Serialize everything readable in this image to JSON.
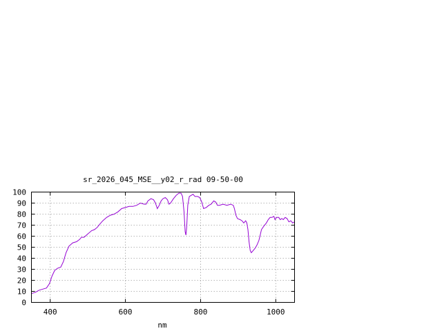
{
  "chart_data": {
    "type": "line",
    "title": "sr_2026_045_MSE__y02_r_rad 09-50-00",
    "xlabel": "nm",
    "ylabel": "",
    "xlim": [
      350,
      1050
    ],
    "ylim": [
      0,
      100
    ],
    "xticks": [
      400,
      600,
      800,
      1000
    ],
    "yticks": [
      0,
      10,
      20,
      30,
      40,
      50,
      60,
      70,
      80,
      90,
      100
    ],
    "grid": true,
    "legend": "none",
    "series": [
      {
        "color": "#9400d3",
        "points": [
          [
            350,
            8
          ],
          [
            360,
            9
          ],
          [
            370,
            11
          ],
          [
            380,
            12
          ],
          [
            390,
            13
          ],
          [
            398,
            17
          ],
          [
            405,
            24
          ],
          [
            412,
            29
          ],
          [
            420,
            31
          ],
          [
            428,
            32
          ],
          [
            435,
            37
          ],
          [
            442,
            45
          ],
          [
            450,
            51
          ],
          [
            460,
            54
          ],
          [
            470,
            55
          ],
          [
            478,
            57
          ],
          [
            483,
            59
          ],
          [
            490,
            59
          ],
          [
            500,
            62
          ],
          [
            510,
            65
          ],
          [
            518,
            66
          ],
          [
            525,
            68
          ],
          [
            532,
            71
          ],
          [
            540,
            74
          ],
          [
            550,
            77
          ],
          [
            560,
            79
          ],
          [
            570,
            80
          ],
          [
            580,
            82
          ],
          [
            590,
            85
          ],
          [
            600,
            86
          ],
          [
            610,
            87
          ],
          [
            620,
            87
          ],
          [
            630,
            88
          ],
          [
            640,
            90
          ],
          [
            650,
            89
          ],
          [
            655,
            89
          ],
          [
            660,
            92
          ],
          [
            668,
            94
          ],
          [
            675,
            93
          ],
          [
            680,
            90
          ],
          [
            685,
            85
          ],
          [
            690,
            88
          ],
          [
            695,
            92
          ],
          [
            700,
            94
          ],
          [
            706,
            95
          ],
          [
            712,
            93
          ],
          [
            716,
            89
          ],
          [
            720,
            90
          ],
          [
            728,
            94
          ],
          [
            735,
            97
          ],
          [
            742,
            99
          ],
          [
            748,
            99
          ],
          [
            752,
            96
          ],
          [
            756,
            82
          ],
          [
            759,
            64
          ],
          [
            761,
            61
          ],
          [
            763,
            68
          ],
          [
            766,
            88
          ],
          [
            770,
            96
          ],
          [
            775,
            97
          ],
          [
            780,
            98
          ],
          [
            785,
            96
          ],
          [
            792,
            96
          ],
          [
            798,
            95
          ],
          [
            803,
            91
          ],
          [
            808,
            85
          ],
          [
            815,
            86
          ],
          [
            822,
            88
          ],
          [
            828,
            89
          ],
          [
            835,
            92
          ],
          [
            840,
            91
          ],
          [
            845,
            88
          ],
          [
            850,
            88
          ],
          [
            860,
            89
          ],
          [
            870,
            88
          ],
          [
            880,
            89
          ],
          [
            887,
            88
          ],
          [
            890,
            85
          ],
          [
            894,
            79
          ],
          [
            898,
            76
          ],
          [
            905,
            75
          ],
          [
            910,
            74
          ],
          [
            915,
            72
          ],
          [
            920,
            74
          ],
          [
            923,
            72
          ],
          [
            926,
            66
          ],
          [
            929,
            55
          ],
          [
            932,
            47
          ],
          [
            935,
            45
          ],
          [
            940,
            47
          ],
          [
            945,
            49
          ],
          [
            950,
            52
          ],
          [
            955,
            56
          ],
          [
            958,
            60
          ],
          [
            962,
            66
          ],
          [
            968,
            69
          ],
          [
            975,
            72
          ],
          [
            980,
            75
          ],
          [
            985,
            77
          ],
          [
            990,
            77
          ],
          [
            995,
            78
          ],
          [
            998,
            75
          ],
          [
            1002,
            77
          ],
          [
            1008,
            77
          ],
          [
            1012,
            75
          ],
          [
            1016,
            76
          ],
          [
            1020,
            75
          ],
          [
            1025,
            77
          ],
          [
            1030,
            76
          ],
          [
            1035,
            73
          ],
          [
            1040,
            74
          ],
          [
            1045,
            72
          ],
          [
            1050,
            73
          ]
        ]
      }
    ]
  }
}
